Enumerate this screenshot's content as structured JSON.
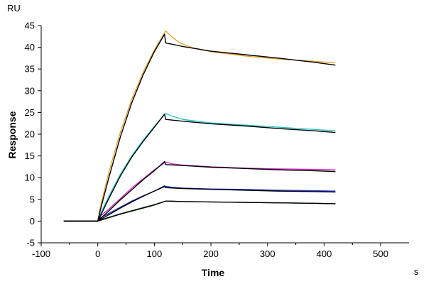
{
  "chart_data": {
    "type": "line",
    "title": "",
    "xlabel": "Time",
    "ylabel": "Response",
    "x_unit": "s",
    "y_unit": "RU",
    "xlim": [
      -100,
      550
    ],
    "ylim": [
      -5,
      45
    ],
    "x_ticks": [
      -100,
      0,
      100,
      200,
      300,
      400,
      500
    ],
    "y_ticks": [
      -5,
      0,
      5,
      10,
      15,
      20,
      25,
      30,
      35,
      40,
      45
    ],
    "grid": false,
    "legend": "none",
    "series": [
      {
        "color": "#e8a020",
        "role": "data",
        "x": [
          -60,
          0,
          5,
          20,
          40,
          60,
          80,
          100,
          120,
          130,
          145,
          170,
          200,
          260,
          320,
          380,
          420
        ],
        "y": [
          0,
          0,
          3.5,
          11.5,
          20.5,
          28,
          34.2,
          39.4,
          43.8,
          42.5,
          41,
          39.8,
          39,
          38,
          37.3,
          36.8,
          36.4
        ]
      },
      {
        "color": "#000000",
        "role": "fit",
        "x": [
          -60,
          0,
          5,
          20,
          40,
          60,
          80,
          100,
          118,
          120,
          150,
          200,
          260,
          320,
          380,
          420
        ],
        "y": [
          0,
          0,
          2.8,
          10.2,
          19.4,
          27.2,
          33.6,
          39,
          43,
          41,
          40.2,
          39.1,
          38.3,
          37.5,
          36.6,
          35.9
        ]
      },
      {
        "color": "#20c0c8",
        "role": "data",
        "x": [
          -60,
          0,
          5,
          20,
          40,
          60,
          80,
          100,
          120,
          130,
          150,
          200,
          260,
          320,
          380,
          420
        ],
        "y": [
          0,
          0,
          1.8,
          5.8,
          10.8,
          15,
          18.6,
          21.8,
          24.8,
          24.2,
          23.4,
          22.6,
          22.1,
          21.6,
          21.1,
          20.8
        ]
      },
      {
        "color": "#000000",
        "role": "fit",
        "x": [
          -60,
          0,
          5,
          20,
          40,
          60,
          80,
          100,
          118,
          120,
          150,
          200,
          260,
          320,
          380,
          420
        ],
        "y": [
          0,
          0,
          1.3,
          5.3,
          10.4,
          14.7,
          18.3,
          21.6,
          24.6,
          23.4,
          23,
          22.4,
          21.9,
          21.3,
          20.8,
          20.4
        ]
      },
      {
        "color": "#d020c0",
        "role": "data",
        "x": [
          -60,
          0,
          5,
          20,
          40,
          60,
          80,
          100,
          120,
          130,
          150,
          200,
          260,
          320,
          380,
          420
        ],
        "y": [
          0,
          0,
          1.2,
          2.8,
          5.2,
          7.6,
          9.7,
          11.8,
          13.6,
          13.2,
          12.9,
          12.5,
          12.2,
          12,
          11.9,
          11.8
        ]
      },
      {
        "color": "#000000",
        "role": "fit",
        "x": [
          -60,
          0,
          5,
          20,
          40,
          60,
          80,
          100,
          118,
          120,
          150,
          200,
          260,
          320,
          380,
          420
        ],
        "y": [
          0,
          0,
          0.6,
          2.4,
          4.9,
          7.2,
          9.5,
          11.6,
          13.7,
          13,
          12.8,
          12.4,
          12.1,
          11.8,
          11.6,
          11.4
        ]
      },
      {
        "color": "#2030d0",
        "role": "data",
        "x": [
          -60,
          0,
          5,
          20,
          40,
          60,
          80,
          100,
          120,
          130,
          150,
          200,
          260,
          320,
          380,
          420
        ],
        "y": [
          0,
          0,
          0.8,
          1.8,
          3.2,
          4.6,
          5.8,
          6.9,
          8,
          7.8,
          7.6,
          7.4,
          7.3,
          7.1,
          7,
          6.9
        ]
      },
      {
        "color": "#000000",
        "role": "fit",
        "x": [
          -60,
          0,
          5,
          20,
          40,
          60,
          80,
          100,
          118,
          120,
          150,
          200,
          260,
          320,
          380,
          420
        ],
        "y": [
          0,
          0,
          0.4,
          1.5,
          3,
          4.4,
          5.7,
          6.9,
          8.1,
          7.7,
          7.5,
          7.3,
          7.1,
          6.9,
          6.8,
          6.7
        ]
      },
      {
        "color": "#1a5a1a",
        "role": "data",
        "x": [
          -60,
          0,
          5,
          20,
          40,
          60,
          80,
          100,
          120,
          130,
          150,
          200,
          260,
          320,
          380,
          420
        ],
        "y": [
          0,
          0,
          0.3,
          0.9,
          1.7,
          2.4,
          3.1,
          3.8,
          4.6,
          4.6,
          4.5,
          4.4,
          4.3,
          4.2,
          4.1,
          4
        ]
      },
      {
        "color": "#000000",
        "role": "fit",
        "x": [
          -60,
          0,
          5,
          20,
          40,
          60,
          80,
          100,
          118,
          120,
          150,
          200,
          260,
          320,
          380,
          420
        ],
        "y": [
          0,
          0,
          0.2,
          0.8,
          1.6,
          2.3,
          3,
          3.7,
          4.5,
          4.6,
          4.5,
          4.4,
          4.3,
          4.2,
          4.1,
          4
        ]
      }
    ]
  }
}
